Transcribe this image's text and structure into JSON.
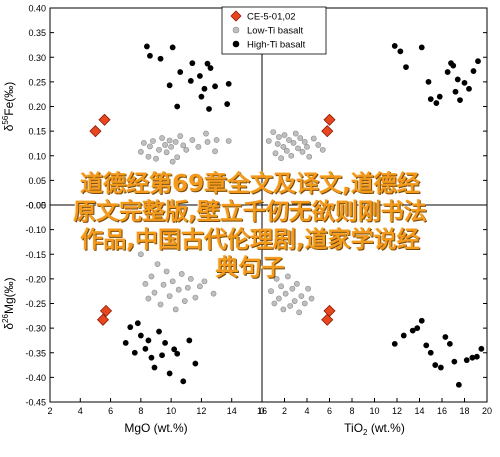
{
  "chart_data": [
    {
      "type": "scatter",
      "panel": "top-left",
      "xlabel": "",
      "ylabel": "δ56Fe(‰)",
      "ylabel_parts": {
        "prefix": "δ",
        "sup": "56",
        "main": "Fe(‰)"
      },
      "xlim": [
        2,
        16
      ],
      "ylim": [
        0.0,
        0.4
      ],
      "yticks": [
        "0.00",
        "0.05",
        "0.10",
        "0.15",
        "0.20",
        "0.25",
        "0.30",
        "0.35",
        "0.40"
      ],
      "series": [
        {
          "name": "CE-5-01,02",
          "marker": "diamond",
          "color": "#e8461e",
          "points": [
            [
              5.0,
              0.15
            ],
            [
              5.6,
              0.173
            ]
          ]
        },
        {
          "name": "Low-Ti basalt",
          "marker": "circle",
          "color": "#bfbfbf",
          "points": [
            [
              8.0,
              0.108
            ],
            [
              8.2,
              0.126
            ],
            [
              8.5,
              0.098
            ],
            [
              8.6,
              0.119
            ],
            [
              8.8,
              0.13
            ],
            [
              9.0,
              0.094
            ],
            [
              9.2,
              0.112
            ],
            [
              9.4,
              0.136
            ],
            [
              9.6,
              0.122
            ],
            [
              9.7,
              0.107
            ],
            [
              9.9,
              0.131
            ],
            [
              10.0,
              0.118
            ],
            [
              10.1,
              0.088
            ],
            [
              10.3,
              0.128
            ],
            [
              10.4,
              0.097
            ],
            [
              10.6,
              0.14
            ],
            [
              10.8,
              0.121
            ],
            [
              11.0,
              0.112
            ],
            [
              11.4,
              0.132
            ],
            [
              11.8,
              0.118
            ],
            [
              12.3,
              0.145
            ],
            [
              12.4,
              0.128
            ],
            [
              12.9,
              0.109
            ],
            [
              13.0,
              0.132
            ],
            [
              13.8,
              0.13
            ]
          ]
        },
        {
          "name": "High-Ti basalt",
          "marker": "circle",
          "color": "#000000",
          "points": [
            [
              8.4,
              0.322
            ],
            [
              8.6,
              0.303
            ],
            [
              9.3,
              0.297
            ],
            [
              9.9,
              0.243
            ],
            [
              10.1,
              0.32
            ],
            [
              10.4,
              0.2
            ],
            [
              10.6,
              0.27
            ],
            [
              11.3,
              0.252
            ],
            [
              11.4,
              0.288
            ],
            [
              11.9,
              0.262
            ],
            [
              12.0,
              0.22
            ],
            [
              12.2,
              0.236
            ],
            [
              12.4,
              0.287
            ],
            [
              12.5,
              0.195
            ],
            [
              12.6,
              0.278
            ],
            [
              12.9,
              0.241
            ],
            [
              13.7,
              0.205
            ],
            [
              13.8,
              0.246
            ]
          ]
        }
      ]
    },
    {
      "type": "scatter",
      "panel": "top-right",
      "xlabel": "",
      "ylabel": "",
      "xlim": [
        0,
        20
      ],
      "ylim": [
        0.0,
        0.4
      ],
      "series": [
        {
          "name": "CE-5-01,02",
          "marker": "diamond",
          "color": "#e8461e",
          "points": [
            [
              5.8,
              0.15
            ],
            [
              6.0,
              0.173
            ]
          ]
        },
        {
          "name": "Low-Ti basalt",
          "marker": "circle",
          "color": "#bfbfbf",
          "points": [
            [
              0.6,
              0.13
            ],
            [
              1.0,
              0.148
            ],
            [
              1.2,
              0.105
            ],
            [
              1.4,
              0.124
            ],
            [
              1.5,
              0.138
            ],
            [
              1.7,
              0.095
            ],
            [
              1.9,
              0.118
            ],
            [
              2.0,
              0.142
            ],
            [
              2.2,
              0.11
            ],
            [
              2.4,
              0.132
            ],
            [
              2.6,
              0.1
            ],
            [
              2.8,
              0.126
            ],
            [
              3.0,
              0.145
            ],
            [
              3.2,
              0.115
            ],
            [
              3.4,
              0.136
            ],
            [
              3.6,
              0.108
            ],
            [
              3.8,
              0.128
            ],
            [
              4.0,
              0.118
            ],
            [
              4.2,
              0.098
            ],
            [
              4.6,
              0.135
            ],
            [
              5.0,
              0.122
            ],
            [
              5.4,
              0.112
            ]
          ]
        },
        {
          "name": "High-Ti basalt",
          "marker": "circle",
          "color": "#000000",
          "points": [
            [
              11.8,
              0.323
            ],
            [
              12.3,
              0.312
            ],
            [
              12.8,
              0.28
            ],
            [
              14.2,
              0.32
            ],
            [
              14.8,
              0.25
            ],
            [
              15.0,
              0.215
            ],
            [
              15.5,
              0.207
            ],
            [
              15.8,
              0.22
            ],
            [
              16.5,
              0.27
            ],
            [
              16.8,
              0.288
            ],
            [
              17.0,
              0.283
            ],
            [
              17.2,
              0.23
            ],
            [
              17.4,
              0.255
            ],
            [
              17.6,
              0.213
            ],
            [
              18.0,
              0.248
            ],
            [
              18.4,
              0.236
            ],
            [
              18.8,
              0.272
            ],
            [
              19.2,
              0.292
            ]
          ]
        }
      ]
    },
    {
      "type": "scatter",
      "panel": "bottom-left",
      "xlabel": "MgO (wt.%)",
      "ylabel": "δ26Mg(‰)",
      "ylabel_parts": {
        "prefix": "δ",
        "sup": "26",
        "main": "Mg(‰)"
      },
      "xlim": [
        2,
        16
      ],
      "ylim": [
        -0.45,
        -0.05
      ],
      "xticks": [
        "2",
        "4",
        "6",
        "8",
        "10",
        "12",
        "14",
        "16"
      ],
      "yticks": [
        "-0.45",
        "-0.40",
        "-0.35",
        "-0.30",
        "-0.25",
        "-0.20",
        "-0.15",
        "-0.10",
        "-0.05"
      ],
      "series": [
        {
          "name": "CE-5-01,02",
          "marker": "diamond",
          "color": "#e8461e",
          "points": [
            [
              5.5,
              -0.283
            ],
            [
              5.7,
              -0.265
            ]
          ]
        },
        {
          "name": "Low-Ti basalt",
          "marker": "circle",
          "color": "#bfbfbf",
          "points": [
            [
              8.0,
              -0.15
            ],
            [
              8.3,
              -0.21
            ],
            [
              8.5,
              -0.24
            ],
            [
              8.7,
              -0.195
            ],
            [
              8.9,
              -0.228
            ],
            [
              9.1,
              -0.17
            ],
            [
              9.3,
              -0.252
            ],
            [
              9.5,
              -0.212
            ],
            [
              9.7,
              -0.185
            ],
            [
              9.9,
              -0.235
            ],
            [
              10.1,
              -0.205
            ],
            [
              10.3,
              -0.262
            ],
            [
              10.5,
              -0.222
            ],
            [
              10.7,
              -0.19
            ],
            [
              10.9,
              -0.245
            ],
            [
              11.1,
              -0.218
            ],
            [
              11.3,
              -0.2
            ],
            [
              11.6,
              -0.238
            ],
            [
              11.9,
              -0.215
            ],
            [
              12.2,
              -0.205
            ],
            [
              12.8,
              -0.23
            ]
          ]
        },
        {
          "name": "High-Ti basalt",
          "marker": "circle",
          "color": "#000000",
          "points": [
            [
              7.0,
              -0.33
            ],
            [
              7.3,
              -0.298
            ],
            [
              7.6,
              -0.35
            ],
            [
              7.8,
              -0.29
            ],
            [
              8.0,
              -0.315
            ],
            [
              8.3,
              -0.342
            ],
            [
              8.5,
              -0.325
            ],
            [
              8.7,
              -0.36
            ],
            [
              8.9,
              -0.38
            ],
            [
              9.2,
              -0.307
            ],
            [
              9.4,
              -0.355
            ],
            [
              9.6,
              -0.33
            ],
            [
              9.9,
              -0.392
            ],
            [
              10.2,
              -0.343
            ],
            [
              10.4,
              -0.352
            ],
            [
              10.8,
              -0.408
            ],
            [
              11.2,
              -0.325
            ],
            [
              11.6,
              -0.372
            ]
          ]
        }
      ]
    },
    {
      "type": "scatter",
      "panel": "bottom-right",
      "xlabel": "TiO2 (wt.%)",
      "xlabel_parts": {
        "main": "TiO",
        "sub": "2",
        "rest": " (wt.%)"
      },
      "ylabel": "",
      "xlim": [
        0,
        20
      ],
      "ylim": [
        -0.45,
        -0.05
      ],
      "xticks": [
        "0",
        "2",
        "4",
        "6",
        "8",
        "10",
        "12",
        "14",
        "16",
        "18",
        "20"
      ],
      "series": [
        {
          "name": "CE-5-01,02",
          "marker": "diamond",
          "color": "#e8461e",
          "points": [
            [
              5.8,
              -0.283
            ],
            [
              6.0,
              -0.265
            ]
          ]
        },
        {
          "name": "Low-Ti basalt",
          "marker": "circle",
          "color": "#bfbfbf",
          "points": [
            [
              0.8,
              -0.225
            ],
            [
              1.1,
              -0.25
            ],
            [
              1.3,
              -0.2
            ],
            [
              1.5,
              -0.24
            ],
            [
              1.7,
              -0.215
            ],
            [
              1.9,
              -0.262
            ],
            [
              2.1,
              -0.23
            ],
            [
              2.3,
              -0.195
            ],
            [
              2.5,
              -0.255
            ],
            [
              2.7,
              -0.22
            ],
            [
              2.9,
              -0.245
            ],
            [
              3.1,
              -0.21
            ],
            [
              3.3,
              -0.268
            ],
            [
              3.5,
              -0.235
            ],
            [
              3.8,
              -0.25
            ],
            [
              4.1,
              -0.22
            ],
            [
              4.4,
              -0.24
            ]
          ]
        },
        {
          "name": "High-Ti basalt",
          "marker": "circle",
          "color": "#000000",
          "points": [
            [
              11.8,
              -0.332
            ],
            [
              12.6,
              -0.315
            ],
            [
              13.4,
              -0.305
            ],
            [
              13.8,
              -0.3
            ],
            [
              14.2,
              -0.285
            ],
            [
              14.6,
              -0.335
            ],
            [
              15.0,
              -0.35
            ],
            [
              15.4,
              -0.375
            ],
            [
              15.9,
              -0.38
            ],
            [
              16.3,
              -0.318
            ],
            [
              16.7,
              -0.332
            ],
            [
              17.1,
              -0.368
            ],
            [
              17.5,
              -0.415
            ],
            [
              18.2,
              -0.365
            ],
            [
              18.7,
              -0.36
            ],
            [
              19.1,
              -0.358
            ],
            [
              19.5,
              -0.342
            ]
          ]
        }
      ]
    }
  ],
  "legend": {
    "placement": "top-right",
    "entries": [
      {
        "label": "CE-5-01,02",
        "marker": "diamond",
        "color": "#e8461e"
      },
      {
        "label": "Low-Ti basalt",
        "marker": "circle",
        "color": "#bfbfbf"
      },
      {
        "label": "High-Ti basalt",
        "marker": "circle",
        "color": "#000000"
      }
    ]
  },
  "overlay": {
    "watermark_lines": [
      "道德经第69章全文及译文,道德经",
      "原文完整版,壁立千仞无欲则刚书法",
      "作品,中国古代伦理剧,道家学说经",
      "典句子"
    ]
  }
}
